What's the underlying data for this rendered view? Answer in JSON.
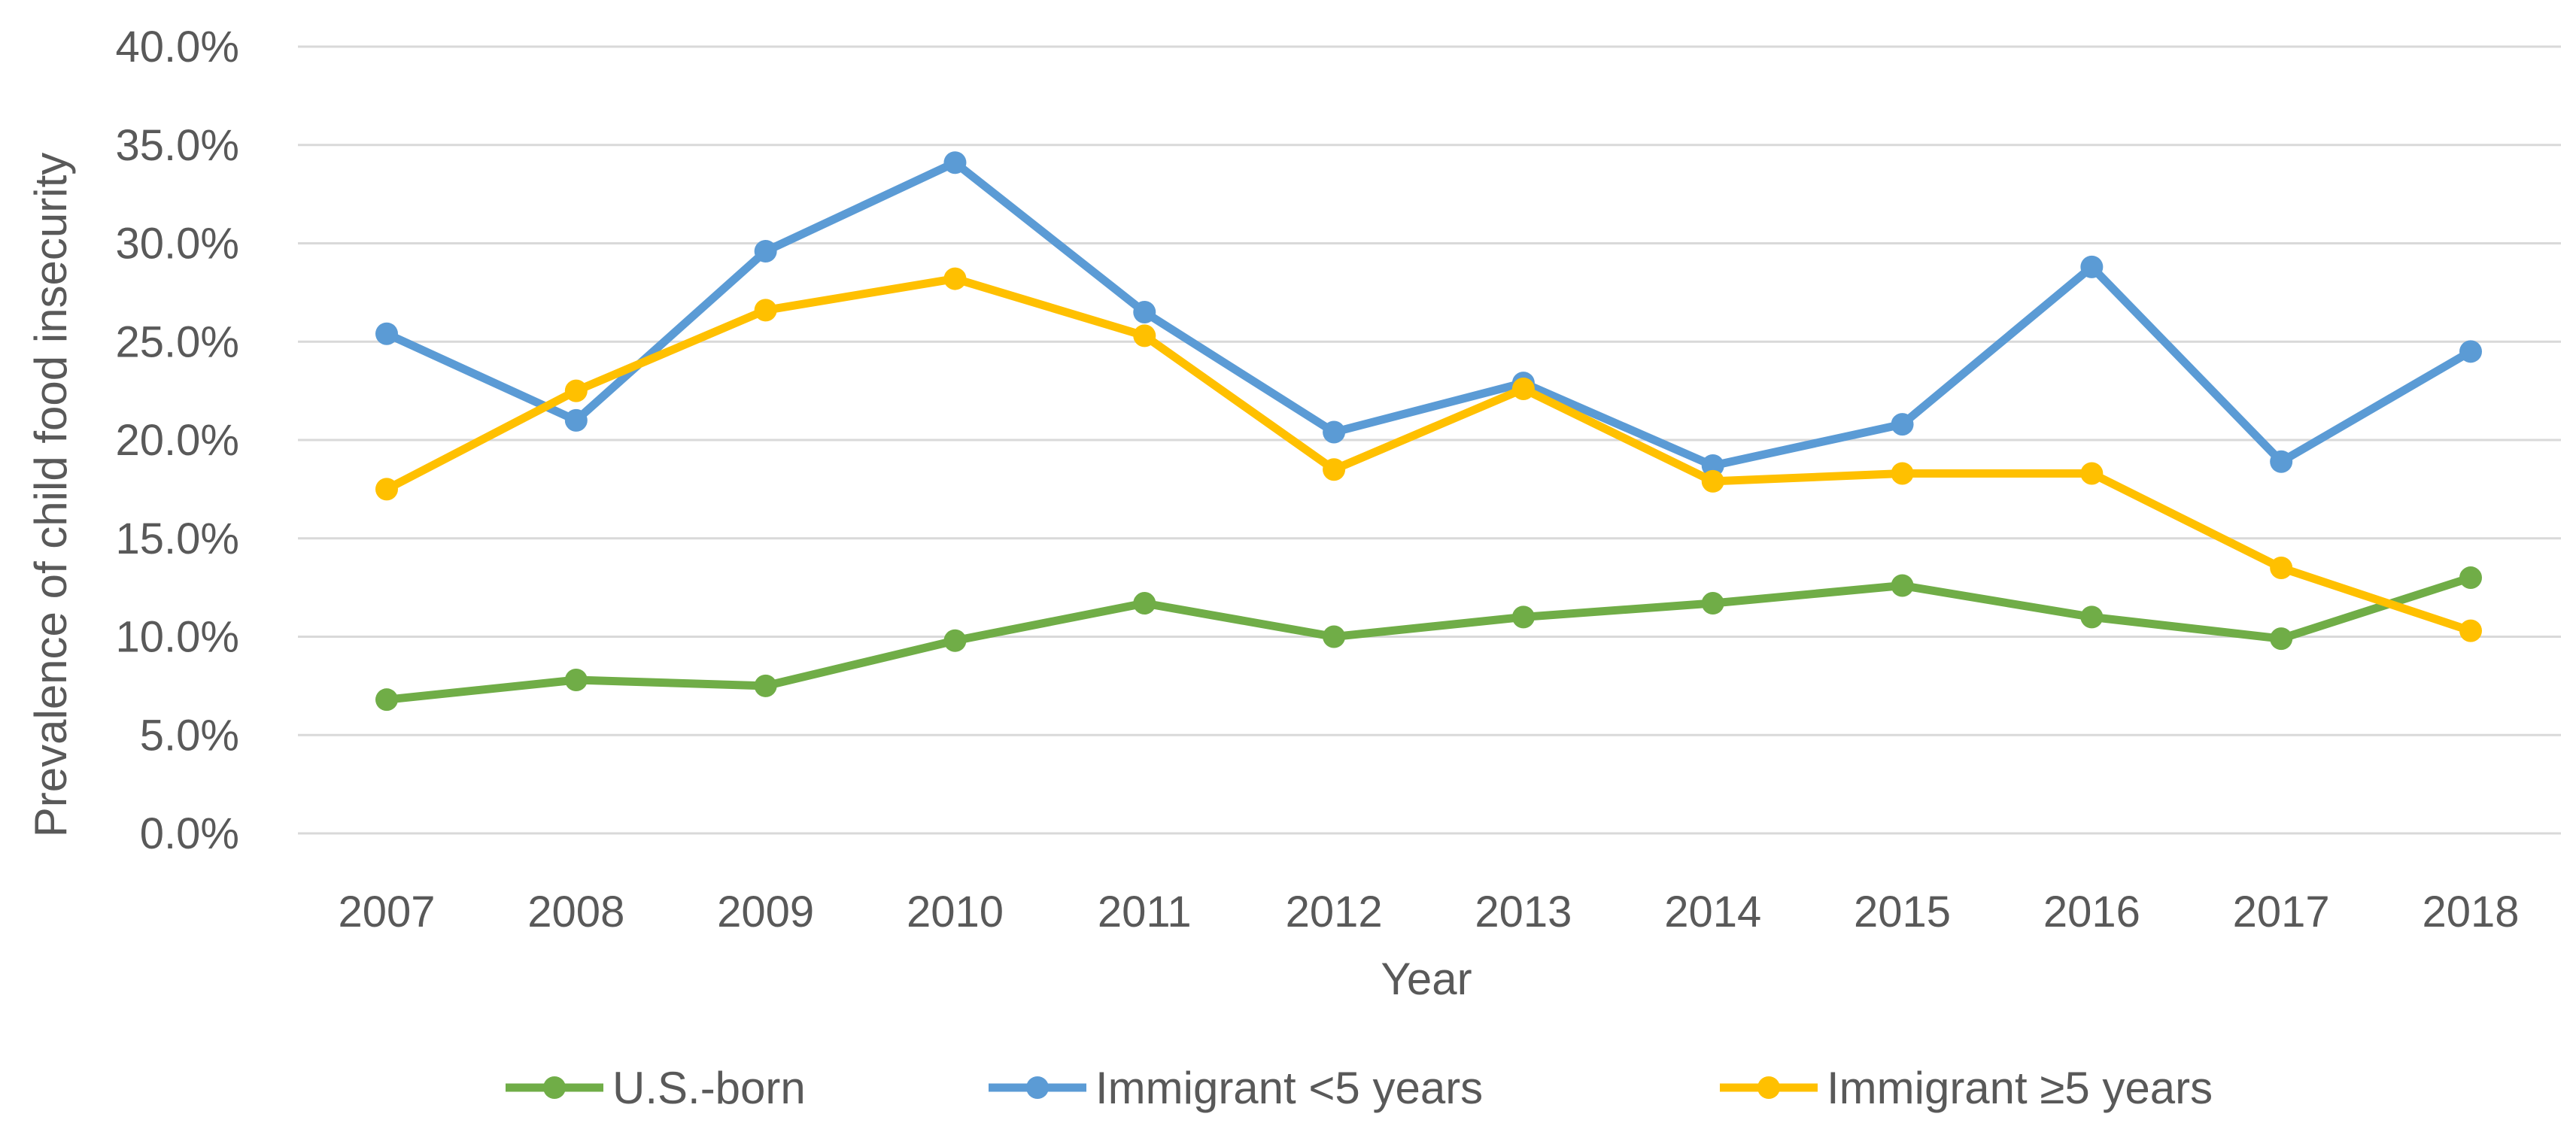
{
  "chart_data": {
    "type": "line",
    "title": "",
    "xlabel": "Year",
    "ylabel": "Prevalence of child food insecurity",
    "ylim": [
      0,
      40
    ],
    "yticks": [
      "0.0%",
      "5.0%",
      "10.0%",
      "15.0%",
      "20.0%",
      "25.0%",
      "30.0%",
      "35.0%",
      "40.0%"
    ],
    "ytick_values": [
      0,
      5,
      10,
      15,
      20,
      25,
      30,
      35,
      40
    ],
    "categories": [
      "2007",
      "2008",
      "2009",
      "2010",
      "2011",
      "2012",
      "2013",
      "2014",
      "2015",
      "2016",
      "2017",
      "2018"
    ],
    "grid": true,
    "legend_position": "bottom",
    "series": [
      {
        "name": "U.S.-born",
        "color": "#70ad47",
        "values": [
          6.8,
          7.8,
          7.5,
          9.8,
          11.7,
          10.0,
          11.0,
          11.7,
          12.6,
          11.0,
          9.9,
          13.0
        ]
      },
      {
        "name": "Immigrant <5 years",
        "color": "#5b9bd5",
        "values": [
          25.4,
          21.0,
          29.6,
          34.1,
          26.5,
          20.4,
          22.9,
          18.7,
          20.8,
          28.8,
          18.9,
          24.5
        ]
      },
      {
        "name": "Immigrant ≥5 years",
        "color": "#ffc000",
        "values": [
          17.5,
          22.5,
          26.6,
          28.2,
          25.3,
          18.5,
          22.6,
          17.9,
          18.3,
          18.3,
          13.5,
          10.3
        ]
      }
    ]
  }
}
